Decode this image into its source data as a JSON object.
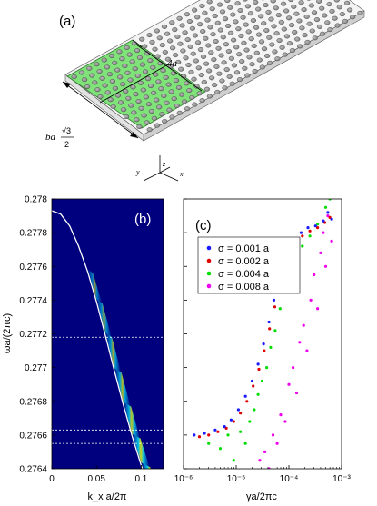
{
  "panel_a": {
    "label": "(a)",
    "dim_4a": "4a",
    "dim_ba": "ba",
    "dim_sqrt3": "√3",
    "dim_two": "2",
    "axis_x": "x",
    "axis_y": "y",
    "axis_z": "z"
  },
  "chart_data": [
    {
      "panel": "(b)",
      "type": "heatmap",
      "xlabel": "k_x a/2π",
      "ylabel": "ωa/(2πc)",
      "xlim": [
        0,
        0.125
      ],
      "ylim": [
        0.2764,
        0.278
      ],
      "xticks": [
        "0",
        "0.05",
        "0.1"
      ],
      "xtick_values": [
        0,
        0.05,
        0.1
      ],
      "yticks": [
        "0.278",
        "0.2778",
        "0.2776",
        "0.2774",
        "0.2772",
        "0.277",
        "0.2768",
        "0.2766",
        "0.2764"
      ],
      "ytick_values": [
        0.278,
        0.2778,
        0.2776,
        0.2774,
        0.2772,
        0.277,
        0.2768,
        0.2766,
        0.2764
      ],
      "dispersion_curve": {
        "x": [
          0,
          0.01,
          0.02,
          0.03,
          0.04,
          0.05,
          0.06,
          0.07,
          0.08,
          0.09,
          0.1,
          0.11,
          0.12,
          0.125
        ],
        "y": [
          0.27793,
          0.27791,
          0.27784,
          0.27772,
          0.27757,
          0.27739,
          0.27719,
          0.27698,
          0.27678,
          0.27659,
          0.27642,
          0.27628,
          0.2762,
          0.27618
        ]
      },
      "dashed_levels": [
        0.27718,
        0.27663,
        0.27655
      ]
    },
    {
      "panel": "(c)",
      "type": "scatter",
      "xlabel": "γa/2πc",
      "x_scale": "log",
      "xlim": [
        1e-06,
        0.001
      ],
      "xticks": [
        "10⁻⁶",
        "10⁻⁵",
        "10⁻⁴",
        "10⁻³"
      ],
      "xtick_values": [
        1e-06,
        1e-05,
        0.0001,
        0.001
      ],
      "ylim": [
        0.2764,
        0.278
      ],
      "legend_position": "upper-left",
      "series": [
        {
          "name": "σ = 0.001 a",
          "color": "#1a1aff",
          "points": [
            [
              1.6e-06,
              0.2766
            ],
            [
              2.5e-06,
              0.27661
            ],
            [
              4e-06,
              0.27663
            ],
            [
              6e-06,
              0.27665
            ],
            [
              8e-06,
              0.27669
            ],
            [
              1.1e-05,
              0.27675
            ],
            [
              1.5e-05,
              0.27683
            ],
            [
              2e-05,
              0.27692
            ],
            [
              2.6e-05,
              0.27702
            ],
            [
              3.3e-05,
              0.27714
            ],
            [
              4.2e-05,
              0.27727
            ],
            [
              5.2e-05,
              0.2774
            ],
            [
              6.5e-05,
              0.27752
            ],
            [
              8e-05,
              0.27762
            ],
            [
              0.0001,
              0.2777
            ],
            [
              0.00013,
              0.27776
            ],
            [
              0.00017,
              0.2778
            ],
            [
              0.00023,
              0.27783
            ],
            [
              0.00032,
              0.27784
            ],
            [
              0.00045,
              0.27787
            ],
            [
              0.00055,
              0.27792
            ],
            [
              0.00065,
              0.27788
            ]
          ]
        },
        {
          "name": "σ = 0.002 a",
          "color": "#e00000",
          "points": [
            [
              2e-06,
              0.27659
            ],
            [
              3e-06,
              0.2766
            ],
            [
              4.5e-06,
              0.27662
            ],
            [
              6.5e-06,
              0.27664
            ],
            [
              9e-06,
              0.27668
            ],
            [
              1.2e-05,
              0.27673
            ],
            [
              1.6e-05,
              0.2768
            ],
            [
              2.1e-05,
              0.27689
            ],
            [
              2.7e-05,
              0.27699
            ],
            [
              3.4e-05,
              0.2771
            ],
            [
              4.3e-05,
              0.27723
            ],
            [
              5.4e-05,
              0.27736
            ],
            [
              6.8e-05,
              0.27748
            ],
            [
              8.5e-05,
              0.27758
            ],
            [
              0.000105,
              0.27766
            ],
            [
              0.000135,
              0.27773
            ],
            [
              0.00018,
              0.27778
            ],
            [
              0.00025,
              0.27781
            ],
            [
              0.00035,
              0.27783
            ],
            [
              0.00048,
              0.27786
            ],
            [
              0.0006,
              0.27789
            ]
          ]
        },
        {
          "name": "σ = 0.004 a",
          "color": "#00dd00",
          "points": [
            [
              3e-06,
              0.27655
            ],
            [
              5e-06,
              0.27652
            ],
            [
              7e-06,
              0.2766
            ],
            [
              9e-06,
              0.27645
            ],
            [
              1.2e-05,
              0.27662
            ],
            [
              1.5e-05,
              0.27655
            ],
            [
              1.8e-05,
              0.27668
            ],
            [
              2.2e-05,
              0.27675
            ],
            [
              2.6e-05,
              0.27684
            ],
            [
              3.1e-05,
              0.27692
            ],
            [
              3.8e-05,
              0.277
            ],
            [
              4.5e-05,
              0.27712
            ],
            [
              5.5e-05,
              0.27722
            ],
            [
              6.8e-05,
              0.27735
            ],
            [
              8.5e-05,
              0.27745
            ],
            [
              0.000105,
              0.27755
            ],
            [
              0.000135,
              0.27765
            ],
            [
              0.00018,
              0.27772
            ],
            [
              0.00025,
              0.27778
            ],
            [
              0.00035,
              0.27785
            ],
            [
              0.0005,
              0.27795
            ],
            [
              0.0006,
              0.278
            ]
          ]
        },
        {
          "name": "σ = 0.008 a",
          "color": "#ee00ee",
          "points": [
            [
              2.8e-05,
              0.27645
            ],
            [
              3.5e-05,
              0.2765
            ],
            [
              4.2e-05,
              0.2764
            ],
            [
              5e-05,
              0.2766
            ],
            [
              6e-05,
              0.27655
            ],
            [
              7e-05,
              0.27672
            ],
            [
              8.5e-05,
              0.27668
            ],
            [
              0.0001,
              0.2769
            ],
            [
              0.00012,
              0.277
            ],
            [
              0.00014,
              0.27685
            ],
            [
              0.00016,
              0.27715
            ],
            [
              0.00019,
              0.27725
            ],
            [
              0.00022,
              0.2771
            ],
            [
              0.00026,
              0.2774
            ],
            [
              0.0003,
              0.27755
            ],
            [
              0.00035,
              0.27735
            ],
            [
              0.0004,
              0.27768
            ],
            [
              0.00045,
              0.2778
            ],
            [
              0.0005,
              0.2776
            ],
            [
              0.00055,
              0.2779
            ],
            [
              0.0006,
              0.27802
            ],
            [
              0.00065,
              0.27775
            ]
          ]
        }
      ]
    }
  ]
}
